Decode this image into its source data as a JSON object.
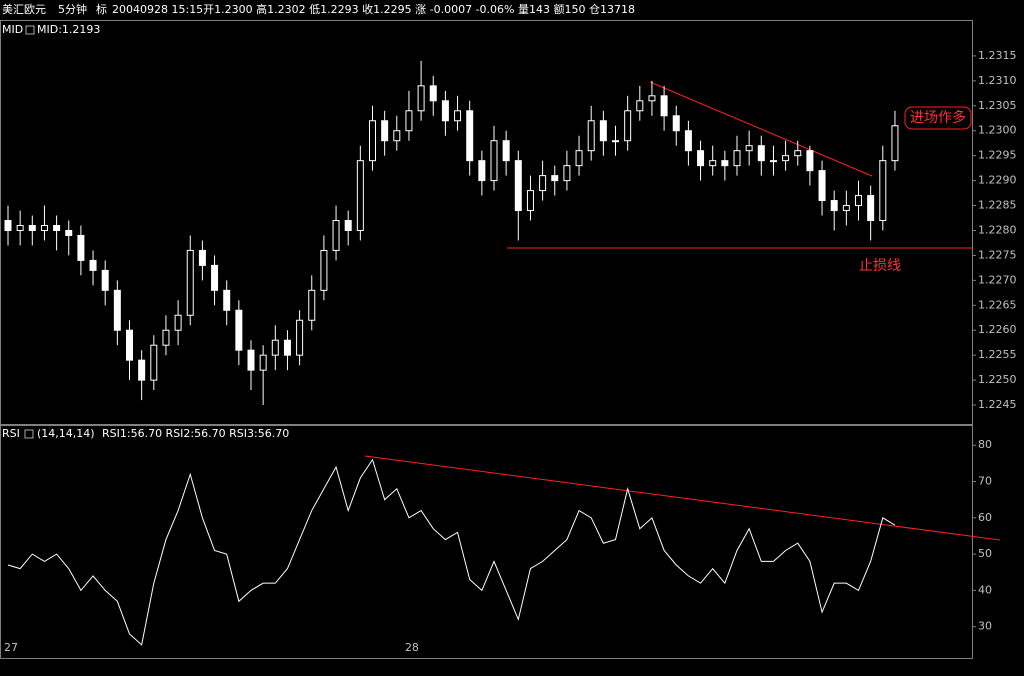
{
  "header": {
    "symbol": "美汇欧元",
    "period": "5分钟",
    "flag": "标",
    "quote": "20040928 15:15开1.2300 高1.2302 低1.2293 收1.2295 涨 -0.0007 -0.06% 量143 额150 仓13718"
  },
  "chart_data": [
    {
      "type": "candlestick",
      "title": "MID",
      "legend": "MID:1.2193",
      "color": "#ffffff",
      "annotations": [
        "进场作多",
        "止损线"
      ],
      "open": [
        1.2282,
        1.228,
        1.2281,
        1.228,
        1.2281,
        1.228,
        1.2279,
        1.2274,
        1.2272,
        1.2268,
        1.226,
        1.2254,
        1.225,
        1.2257,
        1.226,
        1.2263,
        1.2276,
        1.2273,
        1.2268,
        1.2264,
        1.2256,
        1.2252,
        1.2255,
        1.2258,
        1.2255,
        1.2262,
        1.2268,
        1.2276,
        1.2282,
        1.228,
        1.2294,
        1.2302,
        1.2298,
        1.23,
        1.2304,
        1.2309,
        1.2306,
        1.2302,
        1.2304,
        1.2294,
        1.229,
        1.2298,
        1.2294,
        1.2284,
        1.2288,
        1.2291,
        1.229,
        1.2293,
        1.2296,
        1.2302,
        1.2298,
        1.2298,
        1.2304,
        1.2306,
        1.2307,
        1.2303,
        1.23,
        1.2296,
        1.2293,
        1.2294,
        1.2293,
        1.2296,
        1.2297,
        1.2294,
        1.2294,
        1.2295,
        1.2296,
        1.2292,
        1.2286,
        1.2284,
        1.2285,
        1.2287,
        1.2282,
        1.2294
      ],
      "high": [
        1.2285,
        1.2284,
        1.2283,
        1.2285,
        1.2283,
        1.2282,
        1.2281,
        1.2276,
        1.2274,
        1.227,
        1.2262,
        1.2256,
        1.2259,
        1.2263,
        1.2266,
        1.2279,
        1.2278,
        1.2275,
        1.227,
        1.2266,
        1.2258,
        1.2257,
        1.2261,
        1.226,
        1.2264,
        1.2271,
        1.2279,
        1.2285,
        1.2284,
        1.2297,
        1.2305,
        1.2304,
        1.2303,
        1.2308,
        1.2314,
        1.2311,
        1.2308,
        1.2307,
        1.2306,
        1.2296,
        1.2301,
        1.23,
        1.2296,
        1.2291,
        1.2294,
        1.2293,
        1.2296,
        1.2299,
        1.2305,
        1.2304,
        1.2301,
        1.2307,
        1.2309,
        1.231,
        1.2309,
        1.2305,
        1.2302,
        1.2298,
        1.2297,
        1.2296,
        1.2299,
        1.23,
        1.2299,
        1.2297,
        1.2298,
        1.2298,
        1.2297,
        1.2294,
        1.2288,
        1.2288,
        1.229,
        1.2289,
        1.2297,
        1.2304
      ],
      "low": [
        1.2277,
        1.2277,
        1.2277,
        1.2278,
        1.2276,
        1.2275,
        1.2271,
        1.2269,
        1.2265,
        1.2257,
        1.225,
        1.2246,
        1.2248,
        1.2255,
        1.2257,
        1.2261,
        1.227,
        1.2265,
        1.2261,
        1.2253,
        1.2248,
        1.2245,
        1.2252,
        1.2252,
        1.2253,
        1.226,
        1.2266,
        1.2274,
        1.2277,
        1.2278,
        1.2292,
        1.2295,
        1.2296,
        1.2298,
        1.2302,
        1.2303,
        1.2299,
        1.23,
        1.2291,
        1.2287,
        1.2288,
        1.2291,
        1.2278,
        1.2282,
        1.2286,
        1.2287,
        1.2288,
        1.2291,
        1.2294,
        1.2295,
        1.2295,
        1.2296,
        1.2302,
        1.2303,
        1.23,
        1.2297,
        1.2293,
        1.229,
        1.2291,
        1.229,
        1.2291,
        1.2293,
        1.2291,
        1.2291,
        1.2292,
        1.2293,
        1.2289,
        1.2283,
        1.228,
        1.2281,
        1.2282,
        1.2278,
        1.228,
        1.2292
      ],
      "close": [
        1.228,
        1.2281,
        1.228,
        1.2281,
        1.228,
        1.2279,
        1.2274,
        1.2272,
        1.2268,
        1.226,
        1.2254,
        1.225,
        1.2257,
        1.226,
        1.2263,
        1.2276,
        1.2273,
        1.2268,
        1.2264,
        1.2256,
        1.2252,
        1.2255,
        1.2258,
        1.2255,
        1.2262,
        1.2268,
        1.2276,
        1.2282,
        1.228,
        1.2294,
        1.2302,
        1.2298,
        1.23,
        1.2304,
        1.2309,
        1.2306,
        1.2302,
        1.2304,
        1.2294,
        1.229,
        1.2298,
        1.2294,
        1.2284,
        1.2288,
        1.2291,
        1.229,
        1.2293,
        1.2296,
        1.2302,
        1.2298,
        1.2298,
        1.2304,
        1.2306,
        1.2307,
        1.2303,
        1.23,
        1.2296,
        1.2293,
        1.2294,
        1.2293,
        1.2296,
        1.2297,
        1.2294,
        1.2294,
        1.2295,
        1.2296,
        1.2292,
        1.2286,
        1.2284,
        1.2285,
        1.2287,
        1.2282,
        1.2294,
        1.2301
      ],
      "ylim": [
        1.2241,
        1.2322
      ],
      "yticks": [
        1.2245,
        {
          "value": 1.225,
          "label": "1.2250"
        },
        1.2255,
        {
          "value": 1.226,
          "label": "1.2260"
        },
        1.2265,
        {
          "value": 1.227,
          "label": "1.2270"
        },
        1.2275,
        {
          "value": 1.228,
          "label": "1.2280"
        },
        1.2285,
        {
          "value": 1.229,
          "label": "1.2290"
        },
        1.2295,
        {
          "value": 1.23,
          "label": "1.2300"
        },
        1.2305,
        {
          "value": 1.231,
          "label": "1.2310"
        },
        1.2315
      ]
    },
    {
      "type": "line",
      "title": "RSI",
      "params": "(14,14,14)",
      "legend": "RSI1:56.70 RSI2:56.70 RSI3:56.70",
      "color": "#ffffff",
      "categories": [
        "27",
        null,
        null,
        null,
        null,
        null,
        null,
        null,
        null,
        null,
        null,
        null,
        null,
        null,
        null,
        null,
        null,
        null,
        null,
        null,
        null,
        null,
        null,
        null,
        null,
        null,
        null,
        null,
        null,
        null,
        null,
        null,
        null,
        "28",
        null,
        null,
        null,
        null,
        null,
        null,
        null,
        null,
        null,
        null,
        null,
        null,
        null,
        null,
        null,
        null,
        null,
        null,
        null,
        null,
        null,
        null,
        null,
        null,
        null,
        null,
        null,
        null,
        null,
        null,
        null,
        null,
        null,
        null,
        null,
        null,
        null,
        null,
        null,
        null
      ],
      "values": [
        47,
        46,
        50,
        48,
        50,
        46,
        40,
        44,
        40,
        37,
        28,
        25,
        42,
        54,
        62,
        72,
        60,
        51,
        50,
        37,
        40,
        42,
        42,
        46,
        54,
        62,
        68,
        74,
        62,
        71,
        76,
        65,
        68,
        60,
        62,
        57,
        54,
        56,
        43,
        40,
        48,
        40,
        32,
        46,
        48,
        51,
        54,
        62,
        60,
        53,
        54,
        68,
        57,
        60,
        51,
        47,
        44,
        42,
        46,
        42,
        51,
        57,
        48,
        48,
        51,
        53,
        48,
        34,
        42,
        42,
        40,
        48,
        60,
        58
      ],
      "ylim": [
        21.1,
        85.3
      ],
      "yticks": [
        30,
        40,
        50,
        60,
        70,
        80
      ]
    }
  ]
}
